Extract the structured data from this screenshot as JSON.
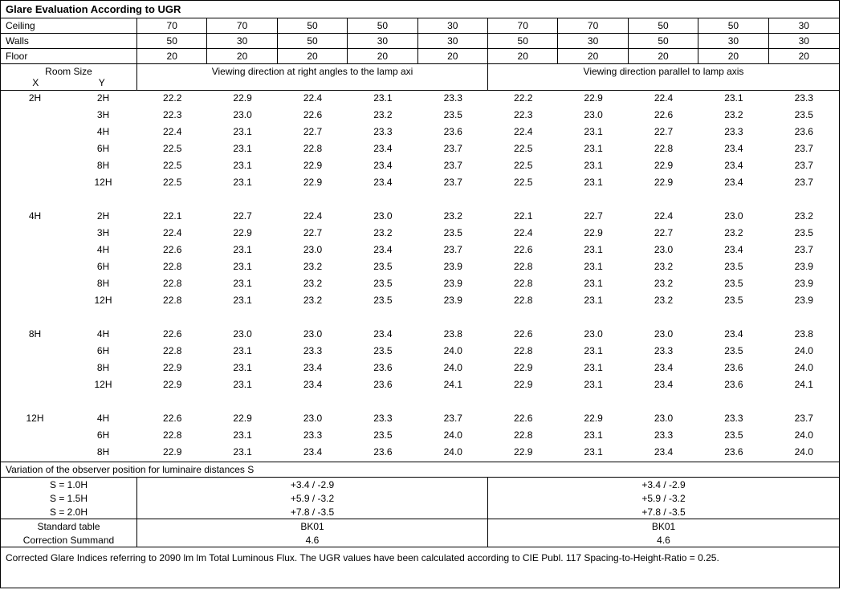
{
  "title": "Glare Evaluation According to UGR",
  "surfaces": {
    "labels": [
      "Ceiling",
      "Walls",
      "Floor"
    ],
    "ceiling": [
      "70",
      "70",
      "50",
      "50",
      "30",
      "70",
      "70",
      "50",
      "50",
      "30"
    ],
    "walls": [
      "50",
      "30",
      "50",
      "30",
      "30",
      "50",
      "30",
      "50",
      "30",
      "30"
    ],
    "floor": [
      "20",
      "20",
      "20",
      "20",
      "20",
      "20",
      "20",
      "20",
      "20",
      "20"
    ]
  },
  "viewing": {
    "roomSize": "Room Size",
    "X": "X",
    "Y": "Y",
    "right": "Viewing direction at right angles to the lamp axi",
    "parallel": "Viewing direction parallel to lamp axis"
  },
  "groups": [
    {
      "x": "2H",
      "rows": [
        {
          "y": "2H",
          "v": [
            "22.2",
            "22.9",
            "22.4",
            "23.1",
            "23.3",
            "22.2",
            "22.9",
            "22.4",
            "23.1",
            "23.3"
          ]
        },
        {
          "y": "3H",
          "v": [
            "22.3",
            "23.0",
            "22.6",
            "23.2",
            "23.5",
            "22.3",
            "23.0",
            "22.6",
            "23.2",
            "23.5"
          ]
        },
        {
          "y": "4H",
          "v": [
            "22.4",
            "23.1",
            "22.7",
            "23.3",
            "23.6",
            "22.4",
            "23.1",
            "22.7",
            "23.3",
            "23.6"
          ]
        },
        {
          "y": "6H",
          "v": [
            "22.5",
            "23.1",
            "22.8",
            "23.4",
            "23.7",
            "22.5",
            "23.1",
            "22.8",
            "23.4",
            "23.7"
          ]
        },
        {
          "y": "8H",
          "v": [
            "22.5",
            "23.1",
            "22.9",
            "23.4",
            "23.7",
            "22.5",
            "23.1",
            "22.9",
            "23.4",
            "23.7"
          ]
        },
        {
          "y": "12H",
          "v": [
            "22.5",
            "23.1",
            "22.9",
            "23.4",
            "23.7",
            "22.5",
            "23.1",
            "22.9",
            "23.4",
            "23.7"
          ]
        }
      ]
    },
    {
      "x": "4H",
      "rows": [
        {
          "y": "2H",
          "v": [
            "22.1",
            "22.7",
            "22.4",
            "23.0",
            "23.2",
            "22.1",
            "22.7",
            "22.4",
            "23.0",
            "23.2"
          ]
        },
        {
          "y": "3H",
          "v": [
            "22.4",
            "22.9",
            "22.7",
            "23.2",
            "23.5",
            "22.4",
            "22.9",
            "22.7",
            "23.2",
            "23.5"
          ]
        },
        {
          "y": "4H",
          "v": [
            "22.6",
            "23.1",
            "23.0",
            "23.4",
            "23.7",
            "22.6",
            "23.1",
            "23.0",
            "23.4",
            "23.7"
          ]
        },
        {
          "y": "6H",
          "v": [
            "22.8",
            "23.1",
            "23.2",
            "23.5",
            "23.9",
            "22.8",
            "23.1",
            "23.2",
            "23.5",
            "23.9"
          ]
        },
        {
          "y": "8H",
          "v": [
            "22.8",
            "23.1",
            "23.2",
            "23.5",
            "23.9",
            "22.8",
            "23.1",
            "23.2",
            "23.5",
            "23.9"
          ]
        },
        {
          "y": "12H",
          "v": [
            "22.8",
            "23.1",
            "23.2",
            "23.5",
            "23.9",
            "22.8",
            "23.1",
            "23.2",
            "23.5",
            "23.9"
          ]
        }
      ]
    },
    {
      "x": "8H",
      "rows": [
        {
          "y": "4H",
          "v": [
            "22.6",
            "23.0",
            "23.0",
            "23.4",
            "23.8",
            "22.6",
            "23.0",
            "23.0",
            "23.4",
            "23.8"
          ]
        },
        {
          "y": "6H",
          "v": [
            "22.8",
            "23.1",
            "23.3",
            "23.5",
            "24.0",
            "22.8",
            "23.1",
            "23.3",
            "23.5",
            "24.0"
          ]
        },
        {
          "y": "8H",
          "v": [
            "22.9",
            "23.1",
            "23.4",
            "23.6",
            "24.0",
            "22.9",
            "23.1",
            "23.4",
            "23.6",
            "24.0"
          ]
        },
        {
          "y": "12H",
          "v": [
            "22.9",
            "23.1",
            "23.4",
            "23.6",
            "24.1",
            "22.9",
            "23.1",
            "23.4",
            "23.6",
            "24.1"
          ]
        }
      ]
    },
    {
      "x": "12H",
      "rows": [
        {
          "y": "4H",
          "v": [
            "22.6",
            "22.9",
            "23.0",
            "23.3",
            "23.7",
            "22.6",
            "22.9",
            "23.0",
            "23.3",
            "23.7"
          ]
        },
        {
          "y": "6H",
          "v": [
            "22.8",
            "23.1",
            "23.3",
            "23.5",
            "24.0",
            "22.8",
            "23.1",
            "23.3",
            "23.5",
            "24.0"
          ]
        },
        {
          "y": "8H",
          "v": [
            "22.9",
            "23.1",
            "23.4",
            "23.6",
            "24.0",
            "22.9",
            "23.1",
            "23.4",
            "23.6",
            "24.0"
          ]
        }
      ]
    }
  ],
  "variation": {
    "title": "Variation of the observer position for luminaire distances S",
    "rows": [
      {
        "s": "S = 1.0H",
        "a": "+3.4 / -2.9",
        "b": "+3.4 / -2.9"
      },
      {
        "s": "S = 1.5H",
        "a": "+5.9 / -3.2",
        "b": "+5.9 / -3.2"
      },
      {
        "s": "S = 2.0H",
        "a": "+7.8 / -3.5",
        "b": "+7.8 / -3.5"
      }
    ],
    "stdLabel": "Standard table",
    "stdA": "BK01",
    "stdB": "BK01",
    "corrLabel": "Correction Summand",
    "corrA": "4.6",
    "corrB": "4.6"
  },
  "footnote": "Corrected Glare Indices referring to 2090 lm lm Total Luminous Flux. The UGR values have been calculated according to CIE Publ. 117    Spacing-to-Height-Ratio = 0.25."
}
